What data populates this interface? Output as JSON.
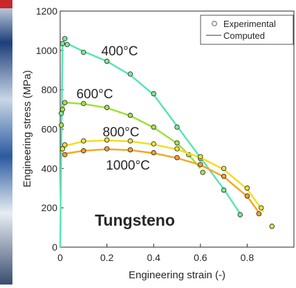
{
  "chart_data": {
    "type": "scatter-line",
    "xlabel": "Engineering strain (-)",
    "ylabel": "Engineering stress (MPa)",
    "xlim": [
      0,
      1
    ],
    "ylim": [
      0,
      1200
    ],
    "xticks": [
      0,
      0.2,
      0.4,
      0.6,
      0.8
    ],
    "yticks": [
      0,
      200,
      400,
      600,
      800,
      1000,
      1200
    ],
    "grid": false,
    "legend_position": "upper-right",
    "legend": [
      {
        "label": "Experimental",
        "marker": "circle",
        "color": "#555555"
      },
      {
        "label": "Computed",
        "marker": "line",
        "color": "#9a9a9a"
      }
    ],
    "annotation": "Tungsteno",
    "series": [
      {
        "name": "400°C",
        "color": "#56e6b4",
        "marker_color": "#7de89a",
        "x": [
          0.005,
          0.01,
          0.02,
          0.03,
          0.1,
          0.2,
          0.3,
          0.4,
          0.5,
          0.6,
          0.7,
          0.77
        ],
        "values": [
          680,
          1035,
          1060,
          1030,
          990,
          945,
          880,
          780,
          610,
          450,
          290,
          165
        ],
        "computed_x": [
          0,
          0.01,
          0.03,
          0.1,
          0.2,
          0.3,
          0.4,
          0.5,
          0.6,
          0.7,
          0.77
        ],
        "computed": [
          0,
          1030,
          1035,
          995,
          945,
          875,
          775,
          615,
          455,
          295,
          170
        ]
      },
      {
        "name": "600°C",
        "color": "#9ee03c",
        "marker_color": "#a8e050",
        "x": [
          0.005,
          0.01,
          0.02,
          0.1,
          0.2,
          0.3,
          0.4,
          0.5,
          0.55,
          0.61
        ],
        "values": [
          620,
          700,
          735,
          730,
          710,
          670,
          610,
          530,
          470,
          380
        ],
        "computed_x": [
          0.01,
          0.02,
          0.1,
          0.2,
          0.3,
          0.4,
          0.5,
          0.55,
          0.6
        ],
        "computed": [
          700,
          735,
          728,
          708,
          668,
          608,
          528,
          470,
          400
        ]
      },
      {
        "name": "800°C",
        "color": "#f4dc1e",
        "marker_color": "#e8e040",
        "x": [
          0.01,
          0.02,
          0.1,
          0.2,
          0.3,
          0.4,
          0.5,
          0.6,
          0.7,
          0.8,
          0.86,
          0.906
        ],
        "values": [
          500,
          520,
          540,
          545,
          540,
          525,
          500,
          460,
          400,
          300,
          200,
          106
        ],
        "computed_x": [
          0.01,
          0.02,
          0.1,
          0.2,
          0.3,
          0.4,
          0.5,
          0.6,
          0.7,
          0.8,
          0.87
        ],
        "computed": [
          480,
          515,
          538,
          543,
          538,
          522,
          497,
          455,
          395,
          295,
          180
        ]
      },
      {
        "name": "1000°C",
        "color": "#f5a623",
        "marker_color": "#f0a030",
        "x": [
          0.02,
          0.1,
          0.2,
          0.3,
          0.4,
          0.5,
          0.6,
          0.7,
          0.8,
          0.85
        ],
        "values": [
          470,
          490,
          500,
          495,
          480,
          455,
          420,
          360,
          260,
          170
        ],
        "computed_x": [
          0.01,
          0.02,
          0.1,
          0.2,
          0.3,
          0.4,
          0.5,
          0.6,
          0.7,
          0.8,
          0.86
        ],
        "computed": [
          470,
          475,
          490,
          498,
          493,
          478,
          453,
          418,
          358,
          258,
          160
        ]
      }
    ]
  }
}
